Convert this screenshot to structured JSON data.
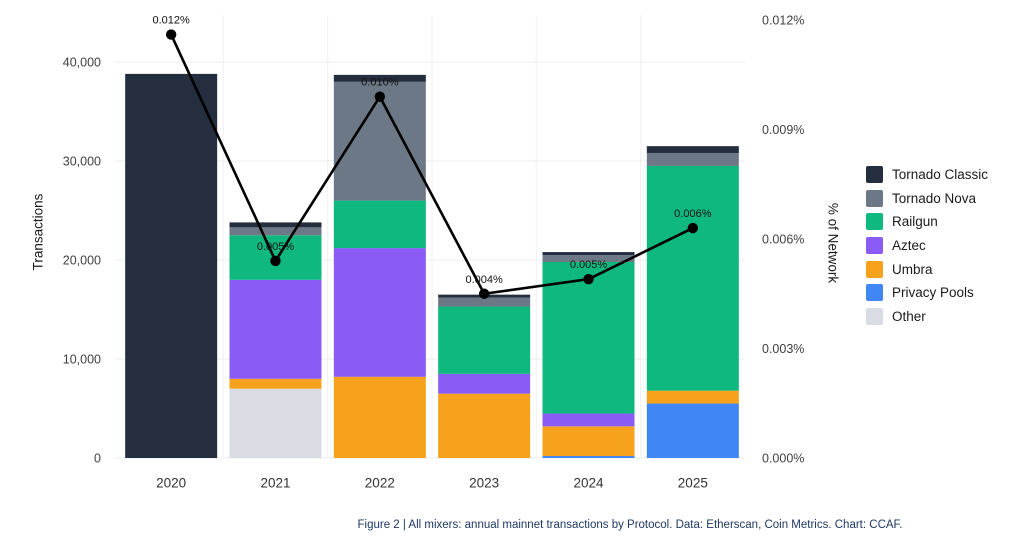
{
  "figure": {
    "caption": "Figure 2 | All mixers: annual mainnet transactions by Protocol. Data: Etherscan, Coin Metrics. Chart: CCAF."
  },
  "chart_data": {
    "type": "bar",
    "overlay": "line",
    "title": "",
    "categories": [
      "2020",
      "2021",
      "2022",
      "2023",
      "2024",
      "2025"
    ],
    "series": [
      {
        "name": "Tornado Classic",
        "color": "#252e3f",
        "values": [
          38800,
          500,
          700,
          300,
          300,
          700
        ]
      },
      {
        "name": "Tornado Nova",
        "color": "#6d7886",
        "values": [
          0,
          800,
          12000,
          900,
          700,
          1300
        ]
      },
      {
        "name": "Railgun",
        "color": "#0eb87e",
        "values": [
          0,
          4500,
          4800,
          6800,
          15300,
          22700
        ]
      },
      {
        "name": "Aztec",
        "color": "#8a5cf5",
        "values": [
          0,
          10000,
          13000,
          2000,
          1300,
          0
        ]
      },
      {
        "name": "Umbra",
        "color": "#f6a21c",
        "values": [
          0,
          1000,
          8200,
          6500,
          3000,
          1300
        ]
      },
      {
        "name": "Privacy Pools",
        "color": "#4186f5",
        "values": [
          0,
          0,
          0,
          0,
          200,
          5500
        ]
      },
      {
        "name": "Other",
        "color": "#d9dde3",
        "values": [
          0,
          7000,
          0,
          0,
          0,
          0
        ]
      }
    ],
    "line_series": {
      "name": "% of Network",
      "color": "#000000",
      "values": [
        0.0116,
        0.0054,
        0.0099,
        0.0045,
        0.0049,
        0.0063
      ],
      "labels": [
        "0.012%",
        "0.005%",
        "0.010%",
        "0.004%",
        "0.005%",
        "0.006%"
      ]
    },
    "left_axis": {
      "title": "Transactions",
      "ticks": [
        "0",
        "10,000",
        "20,000",
        "30,000",
        "40,000"
      ],
      "tick_values": [
        0,
        10000,
        20000,
        30000,
        40000
      ],
      "max": 40000
    },
    "right_axis": {
      "title": "% of Network",
      "ticks": [
        "0.000%",
        "0.003%",
        "0.006%",
        "0.009%",
        "0.012%"
      ],
      "tick_values": [
        0,
        0.003,
        0.006,
        0.009,
        0.012
      ],
      "max": 0.012
    },
    "grid": "on",
    "legend_position": "right"
  },
  "legend": {
    "items": [
      {
        "label": "Tornado Classic",
        "color": "#252e3f"
      },
      {
        "label": "Tornado Nova",
        "color": "#6d7886"
      },
      {
        "label": "Railgun",
        "color": "#0eb87e"
      },
      {
        "label": "Aztec",
        "color": "#8a5cf5"
      },
      {
        "label": "Umbra",
        "color": "#f6a21c"
      },
      {
        "label": "Privacy Pools",
        "color": "#4186f5"
      },
      {
        "label": "Other",
        "color": "#d9dde3"
      }
    ]
  }
}
